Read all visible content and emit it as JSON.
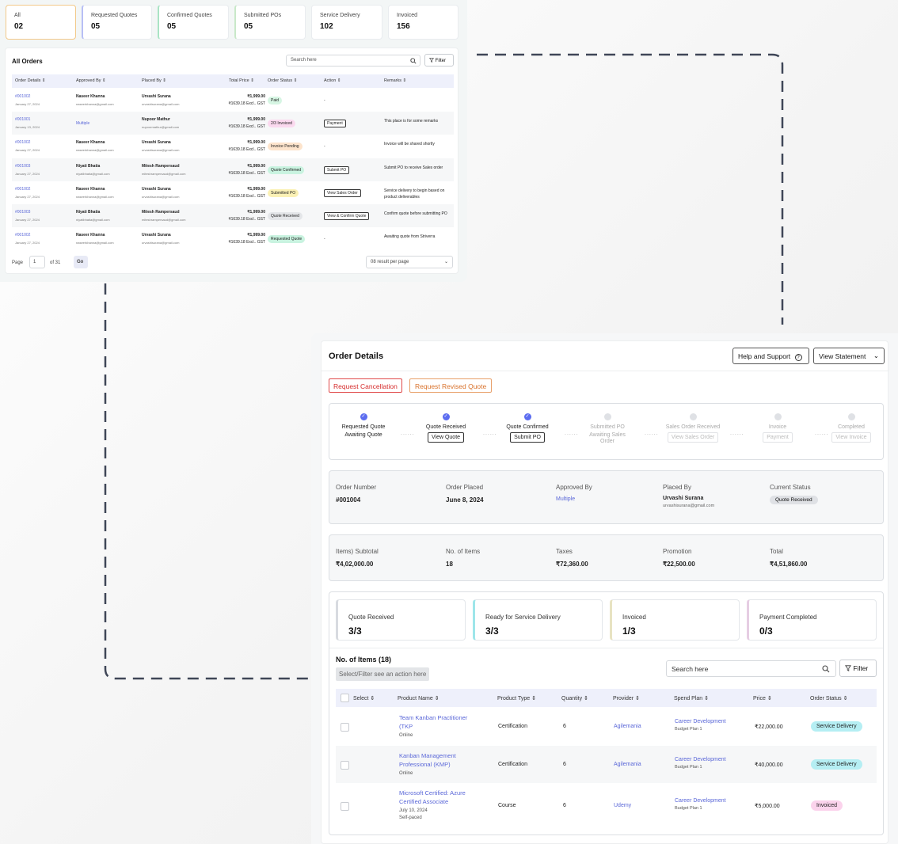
{
  "orders_summary": {
    "stats": [
      {
        "label": "All",
        "value": "02"
      },
      {
        "label": "Requested Quotes",
        "value": "05"
      },
      {
        "label": "Confirmed Quotes",
        "value": "05"
      },
      {
        "label": "Submitted POs",
        "value": "05"
      },
      {
        "label": "Service Delivery",
        "value": "102"
      },
      {
        "label": "Invoiced",
        "value": "156"
      }
    ],
    "title": "All Orders",
    "search_placeholder": "Search here",
    "filter_label": "Filter",
    "columns": [
      "Order Details",
      "Approved By",
      "Placed By",
      "Total Price",
      "Order Status",
      "Action",
      "Remarks"
    ],
    "rows": [
      {
        "id": "#001002",
        "date": "January 27, 2024",
        "approved": "Naseer Khanna",
        "approved_email": "naseerkhanna@gmail.com",
        "placed": "Urvashi Surana",
        "placed_email": "urvashisurana@gmail.com",
        "price": "₹1,999.00",
        "excl": "₹1639.18 Excl.. GST",
        "status": "Paid",
        "status_color": "#d6f5e3",
        "action": "-",
        "remarks": ""
      },
      {
        "id": "#001001",
        "date": "January 13, 2024",
        "approved": "Multiple",
        "approved_email": "",
        "placed": "Nupoor Mathur",
        "placed_email": "nupoormathur@gmail.com",
        "price": "₹1,999.00",
        "excl": "₹1639.18 Excl.. GST",
        "status": "2/3 Invoiced",
        "status_color": "#fbd9ef",
        "action": "Payment",
        "remarks": "This place is for some remarks"
      },
      {
        "id": "#001002",
        "date": "January 27, 2024",
        "approved": "Naseer Khanna",
        "approved_email": "naseerkhanna@gmail.com",
        "placed": "Urvashi Surana",
        "placed_email": "urvashisurana@gmail.com",
        "price": "₹1,999.00",
        "excl": "₹1639.18 Excl.. GST",
        "status": "Invoice Pending",
        "status_color": "#fde4cc",
        "action": "-",
        "remarks": "Invoice will be shared shortly"
      },
      {
        "id": "#001003",
        "date": "January 27, 2024",
        "approved": "Niyati Bhatia",
        "approved_email": "niyatibhatia@gmail.com",
        "placed": "Mitesh Rampersaud",
        "placed_email": "miteshrampersaud@gmail.com",
        "price": "₹1,999.00",
        "excl": "₹1639.18 Excl.. GST",
        "status": "Quote Confirmed",
        "status_color": "#c9f3e0",
        "action": "Submit PO",
        "remarks": "Submit PO to receive Sales order"
      },
      {
        "id": "#001002",
        "date": "January 27, 2024",
        "approved": "Naseer Khanna",
        "approved_email": "naseerkhanna@gmail.com",
        "placed": "Urvashi Surana",
        "placed_email": "urvashisurana@gmail.com",
        "price": "₹1,999.00",
        "excl": "₹1639.18 Excl.. GST",
        "status": "Submitted PO",
        "status_color": "#fbf1b5",
        "action": "View Sales Order",
        "remarks": "Service delivery to begin based on product deliverables"
      },
      {
        "id": "#001003",
        "date": "January 27, 2024",
        "approved": "Niyati Bhatia",
        "approved_email": "niyatibhatia@gmail.com",
        "placed": "Mitesh Rampersaud",
        "placed_email": "miteshrampersaud@gmail.com",
        "price": "₹1,999.00",
        "excl": "₹1639.18 Excl.. GST",
        "status": "Quote Received",
        "status_color": "#e4e6e9",
        "action": "View & Confirm Quote",
        "remarks": "Confirm quote before submitting PO"
      },
      {
        "id": "#001002",
        "date": "January 27, 2024",
        "approved": "Naseer Khanna",
        "approved_email": "naseerkhanna@gmail.com",
        "placed": "Urvashi Surana",
        "placed_email": "urvashisurana@gmail.com",
        "price": "₹1,999.00",
        "excl": "₹1639.18 Excl.. GST",
        "status": "Requested Quote",
        "status_color": "#c9f3e0",
        "action": "-",
        "remarks": "Awaiting quote from Striverra"
      }
    ],
    "pagination": {
      "page_label": "Page",
      "page": "1",
      "of": "of 31",
      "go": "Go",
      "per_page": "08 result per page"
    }
  },
  "order_details": {
    "title": "Order Details",
    "help_label": "Help and Support",
    "statement_label": "View Statement",
    "request_cancellation": "Request Cancellation",
    "request_revised_quote": "Request Revised Quote",
    "steps": [
      {
        "label": "Requested Quote",
        "sub": "Awaiting Quote",
        "button": "",
        "done": true
      },
      {
        "label": "Quote Received",
        "sub": "",
        "button": "View Quote",
        "done": true
      },
      {
        "label": "Quote Confirmed",
        "sub": "",
        "button": "Submit PO",
        "done": true
      },
      {
        "label": "Submitted PO",
        "sub": "Awaiting Sales Order",
        "button": "",
        "done": false
      },
      {
        "label": "Sales Order Received",
        "sub": "",
        "button": "View Sales Order",
        "done": false
      },
      {
        "label": "Invoice",
        "sub": "",
        "button": "Payment",
        "done": false
      },
      {
        "label": "Completed",
        "sub": "",
        "button": "View Invoice",
        "done": false
      }
    ],
    "info": {
      "order_number_label": "Order Number",
      "order_number": "#001004",
      "order_placed_label": "Order Placed",
      "order_placed": "June 8, 2024",
      "approved_by_label": "Approved By",
      "approved_by": "Multiple",
      "placed_by_label": "Placed By",
      "placed_by": "Urvashi Surana",
      "placed_by_email": "urvashisurana@gmail.com",
      "current_status_label": "Current Status",
      "current_status": "Quote Received"
    },
    "totals": {
      "subtotal_label": "Items) Subtotal",
      "subtotal": "₹4,02,000.00",
      "items_label": "No. of Items",
      "items": "18",
      "taxes_label": "Taxes",
      "taxes": "₹72,360.00",
      "promotion_label": "Promotion",
      "promotion": "₹22,500.00",
      "total_label": "Total",
      "total": "₹4,51,860.00"
    },
    "metrics": [
      {
        "label": "Quote Received",
        "value": "3/3",
        "accent": "#d8dbe0"
      },
      {
        "label": "Ready for Service Delivery",
        "value": "3/3",
        "accent": "#9ee6ea"
      },
      {
        "label": "Invoiced",
        "value": "1/3",
        "accent": "#e8e3c2"
      },
      {
        "label": "Payment Completed",
        "value": "0/3",
        "accent": "#e6cde3"
      }
    ],
    "items_title": "No. of Items (18)",
    "action_hint": "Select/Filter see an action here",
    "search_placeholder": "Search here",
    "filter_label": "Filter",
    "columns": [
      "Select",
      "Product Name",
      "Product Type",
      "Quantity",
      "Provider",
      "Spend Plan",
      "Price",
      "Order Status"
    ],
    "rows": [
      {
        "name": "Team Kanban Practitioner (TKP",
        "meta1": "Online",
        "meta2": "",
        "type": "Certification",
        "qty": "6",
        "provider": "Agilemania",
        "plan": "Career Development",
        "plan_sub": "Budget Plan 1",
        "price": "₹22,000.00",
        "status": "Service Delivery",
        "status_color": "#b5eef3"
      },
      {
        "name": "Kanban Management Professional (KMP)",
        "meta1": "Online",
        "meta2": "",
        "type": "Certification",
        "qty": "6",
        "provider": "Agilemania",
        "plan": "Career Development",
        "plan_sub": "Budget Plan 1",
        "price": "₹40,000.00",
        "status": "Service Delivery",
        "status_color": "#b5eef3"
      },
      {
        "name": "Microsoft Certified: Azure Certified Associate",
        "meta1": "July 10, 2024",
        "meta2": "Self-paced",
        "type": "Course",
        "qty": "6",
        "provider": "Udemy",
        "plan": "Career Development",
        "plan_sub": "Budget Plan 1",
        "price": "₹5,000.00",
        "status": "Invoiced",
        "status_color": "#fbd3ec"
      }
    ]
  }
}
